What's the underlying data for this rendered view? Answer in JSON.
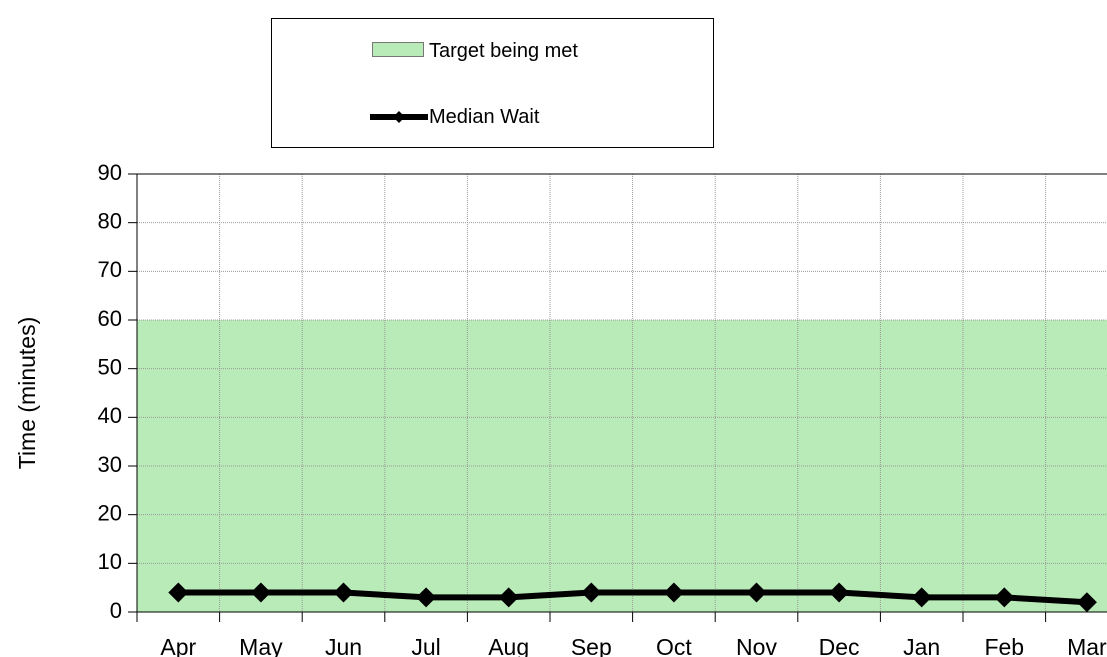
{
  "chart_data": {
    "type": "line",
    "y_label": "Time (minutes)",
    "categories": [
      "Apr",
      "May",
      "Jun",
      "Jul",
      "Aug",
      "Sep",
      "Oct",
      "Nov",
      "Dec",
      "Jan",
      "Feb",
      "Mar"
    ],
    "target_band": {
      "name": "Target being met",
      "value": 60,
      "color": "#b9ebb9"
    },
    "series": [
      {
        "name": "Median Wait",
        "color": "#000000",
        "values": [
          4,
          4,
          4,
          3,
          3,
          4,
          4,
          4,
          4,
          3,
          3,
          2
        ]
      }
    ],
    "ylim": [
      0,
      90
    ],
    "yticks": [
      0,
      10,
      20,
      30,
      40,
      50,
      60,
      70,
      80,
      90
    ],
    "grid": true,
    "legend": "top"
  }
}
